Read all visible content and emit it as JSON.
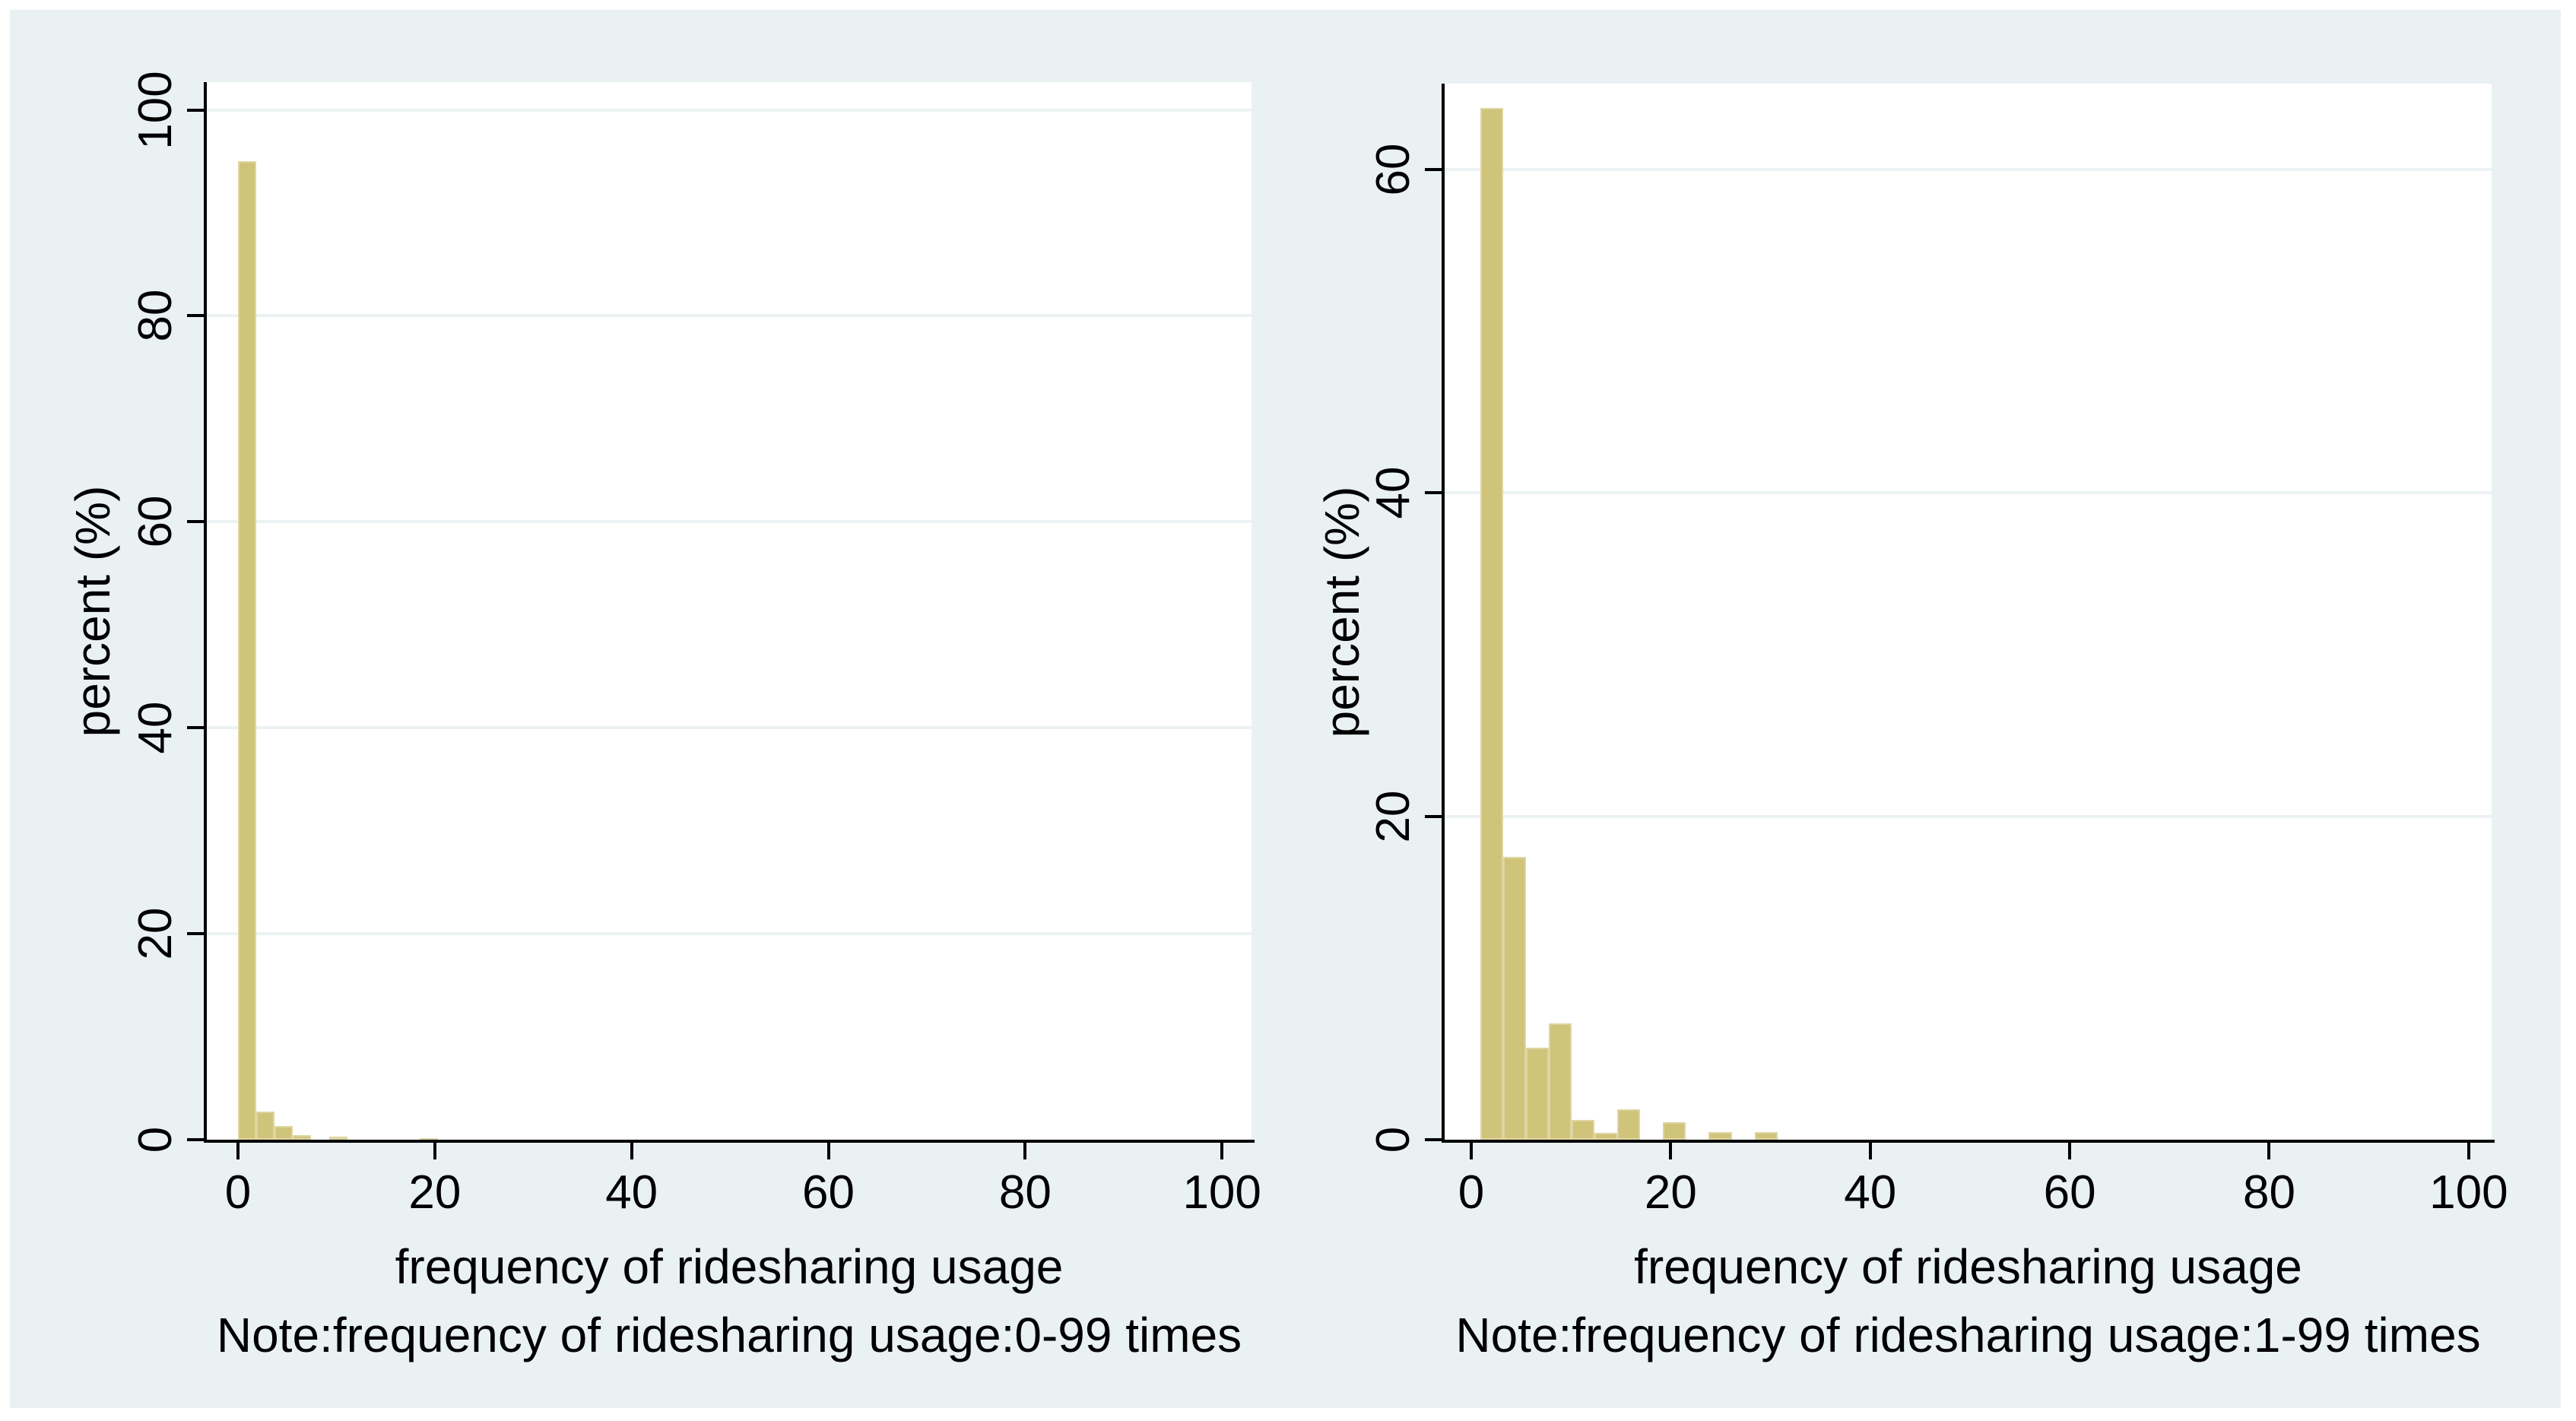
{
  "figure": {
    "background_color": "#e9f1f2",
    "page_color": "#ffffff",
    "plot_color": "#ffffff",
    "bar_fill_color": "#d0c37a",
    "bar_border_color": "#ded6a2",
    "gridline_color": "#ecf2f3",
    "axis_color": "#000000",
    "text_color": "#000000"
  },
  "chart_data": [
    {
      "type": "bar",
      "panel": "left",
      "title": "",
      "xlabel": "frequency of ridesharing usage",
      "ylabel": "percent (%)",
      "note": "Note:frequency of ridesharing usage:0-99 times",
      "x_ticks": [
        0,
        20,
        40,
        60,
        80,
        100
      ],
      "y_ticks": [
        0,
        20,
        40,
        60,
        80,
        100
      ],
      "xlim": [
        -3.17,
        103.0
      ],
      "ylim": [
        0,
        102.7
      ],
      "grid": true,
      "legend": false,
      "bin_width": 1.85,
      "bars": [
        {
          "x": 0.0,
          "v": 95.0
        },
        {
          "x": 1.85,
          "v": 2.7
        },
        {
          "x": 3.7,
          "v": 1.3
        },
        {
          "x": 5.55,
          "v": 0.45
        },
        {
          "x": 9.25,
          "v": 0.3
        },
        {
          "x": 18.5,
          "v": 0.15
        }
      ]
    },
    {
      "type": "bar",
      "panel": "right",
      "title": "",
      "xlabel": "frequency of ridesharing usage",
      "ylabel": "percent (%)",
      "note": "Note:frequency of ridesharing usage:1-99 times",
      "x_ticks": [
        0,
        20,
        40,
        60,
        80,
        100
      ],
      "y_ticks": [
        0,
        20,
        40,
        60
      ],
      "xlim": [
        -2.67,
        102.3
      ],
      "ylim": [
        0,
        65.3
      ],
      "grid": true,
      "legend": false,
      "bin_width": 2.29,
      "bars": [
        {
          "x": 0.92,
          "v": 63.8
        },
        {
          "x": 3.21,
          "v": 17.5
        },
        {
          "x": 5.5,
          "v": 5.7
        },
        {
          "x": 7.79,
          "v": 7.2
        },
        {
          "x": 10.08,
          "v": 1.2
        },
        {
          "x": 12.37,
          "v": 0.4
        },
        {
          "x": 14.66,
          "v": 1.9
        },
        {
          "x": 19.24,
          "v": 1.1
        },
        {
          "x": 23.82,
          "v": 0.45
        },
        {
          "x": 28.4,
          "v": 0.45
        }
      ]
    }
  ]
}
